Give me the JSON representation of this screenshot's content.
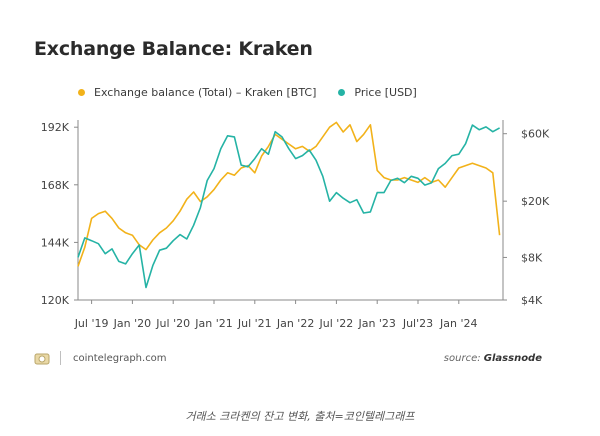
{
  "header": {
    "title": "Exchange Balance: Kraken"
  },
  "footer": {
    "site": "cointelegraph.com",
    "source_prefix": "source: ",
    "source_name": "Glassnode"
  },
  "caption": "거래소 크라켄의 잔고 변화, 출처=코인텔레그래프",
  "colors": {
    "balance": "#f2b21a",
    "price": "#25b3a5",
    "axis": "#8a8a8a",
    "text": "#444444"
  },
  "chart_data": {
    "type": "line",
    "title": "Exchange Balance: Kraken",
    "x_ticks": [
      "Jul '19",
      "Jan '20",
      "Jul '20",
      "Jan '21",
      "Jul '21",
      "Jan '22",
      "Jul '22",
      "Jan '23",
      "Jul'23",
      "Jan '24"
    ],
    "y_left": {
      "ticks": [
        "120K",
        "144K",
        "168K",
        "192K"
      ],
      "values": [
        120000,
        144000,
        168000,
        192000
      ],
      "range": [
        120000,
        195000
      ]
    },
    "y_right": {
      "ticks": [
        "$4K",
        "$8K",
        "$20K",
        "$60K"
      ],
      "values": [
        4000,
        8000,
        20000,
        60000
      ],
      "scale": "log",
      "range": [
        4000,
        75000
      ]
    },
    "grid": false,
    "legend_position": "top",
    "series": [
      {
        "name": "Exchange balance (Total) – Kraken [BTC]",
        "axis": "left",
        "x": [
          "2019-05",
          "2019-06",
          "2019-07",
          "2019-08",
          "2019-09",
          "2019-10",
          "2019-11",
          "2019-12",
          "2020-01",
          "2020-02",
          "2020-03",
          "2020-04",
          "2020-05",
          "2020-06",
          "2020-07",
          "2020-08",
          "2020-09",
          "2020-10",
          "2020-11",
          "2020-12",
          "2021-01",
          "2021-02",
          "2021-03",
          "2021-04",
          "2021-05",
          "2021-06",
          "2021-07",
          "2021-08",
          "2021-09",
          "2021-10",
          "2021-11",
          "2021-12",
          "2022-01",
          "2022-02",
          "2022-03",
          "2022-04",
          "2022-05",
          "2022-06",
          "2022-07",
          "2022-08",
          "2022-09",
          "2022-10",
          "2022-11",
          "2022-12",
          "2023-01",
          "2023-02",
          "2023-03",
          "2023-04",
          "2023-05",
          "2023-06",
          "2023-07",
          "2023-08",
          "2023-09",
          "2023-10",
          "2023-11",
          "2023-12",
          "2024-01",
          "2024-02",
          "2024-03",
          "2024-04",
          "2024-05",
          "2024-06",
          "2024-07"
        ],
        "values": [
          134000,
          142000,
          154000,
          156000,
          157000,
          154000,
          150000,
          148000,
          147000,
          143000,
          141000,
          145000,
          148000,
          150000,
          153000,
          157000,
          162000,
          165000,
          161000,
          163000,
          166000,
          170000,
          173000,
          172000,
          175000,
          176000,
          173000,
          180000,
          184000,
          189000,
          187000,
          185000,
          183000,
          184000,
          182000,
          184000,
          188000,
          192000,
          194000,
          190000,
          193000,
          186000,
          189000,
          193000,
          174000,
          171000,
          170000,
          170000,
          171000,
          170000,
          169000,
          171000,
          169000,
          170000,
          167000,
          171000,
          175000,
          176000,
          177000,
          176000,
          175000,
          173000,
          147000
        ]
      },
      {
        "name": "Price [USD]",
        "axis": "right",
        "x": [
          "2019-05",
          "2019-06",
          "2019-07",
          "2019-08",
          "2019-09",
          "2019-10",
          "2019-11",
          "2019-12",
          "2020-01",
          "2020-02",
          "2020-03",
          "2020-04",
          "2020-05",
          "2020-06",
          "2020-07",
          "2020-08",
          "2020-09",
          "2020-10",
          "2020-11",
          "2020-12",
          "2021-01",
          "2021-02",
          "2021-03",
          "2021-04",
          "2021-05",
          "2021-06",
          "2021-07",
          "2021-08",
          "2021-09",
          "2021-10",
          "2021-11",
          "2021-12",
          "2022-01",
          "2022-02",
          "2022-03",
          "2022-04",
          "2022-05",
          "2022-06",
          "2022-07",
          "2022-08",
          "2022-09",
          "2022-10",
          "2022-11",
          "2022-12",
          "2023-01",
          "2023-02",
          "2023-03",
          "2023-04",
          "2023-05",
          "2023-06",
          "2023-07",
          "2023-08",
          "2023-09",
          "2023-10",
          "2023-11",
          "2023-12",
          "2024-01",
          "2024-02",
          "2024-03",
          "2024-04",
          "2024-05",
          "2024-06",
          "2024-07"
        ],
        "values": [
          8000,
          11000,
          10500,
          10000,
          8500,
          9200,
          7500,
          7200,
          8500,
          9800,
          4900,
          7000,
          9000,
          9300,
          10500,
          11600,
          10800,
          13500,
          18000,
          28000,
          34000,
          47000,
          58000,
          57000,
          36000,
          35000,
          40000,
          47000,
          43000,
          62000,
          57000,
          47000,
          40000,
          42000,
          46000,
          39000,
          30000,
          20000,
          23000,
          21000,
          19500,
          20500,
          16500,
          16800,
          23000,
          23000,
          28000,
          29000,
          27000,
          30000,
          29000,
          26000,
          27000,
          34000,
          37000,
          42000,
          43000,
          51000,
          69000,
          64000,
          67000,
          62000,
          66000
        ]
      }
    ]
  }
}
